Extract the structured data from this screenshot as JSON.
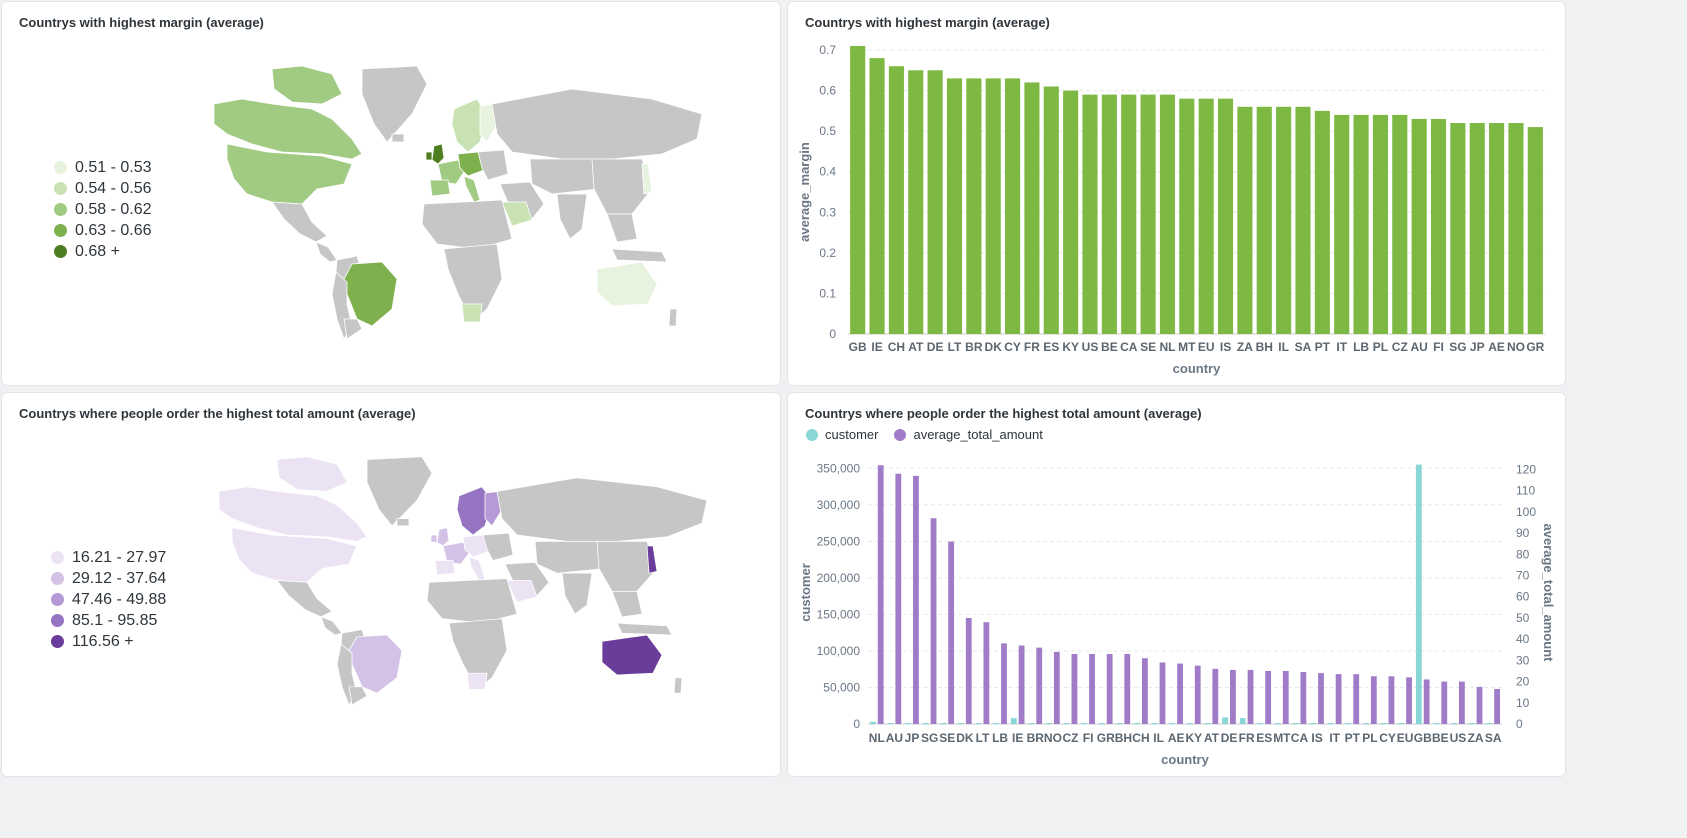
{
  "cards": {
    "map_margin": {
      "title": "Countrys with highest margin (average)"
    },
    "bar_margin": {
      "title": "Countrys with highest margin (average)"
    },
    "map_total": {
      "title": "Countrys where people order the highest total amount (average)"
    },
    "bar_total": {
      "title": "Countrys where people order the highest total amount (average)"
    }
  },
  "map_margin_legend": [
    {
      "label": "0.51 - 0.53",
      "color": "#e8f3df"
    },
    {
      "label": "0.54 - 0.56",
      "color": "#c8e2b3"
    },
    {
      "label": "0.58 - 0.62",
      "color": "#a1ca83"
    },
    {
      "label": "0.63 - 0.66",
      "color": "#7eb04e"
    },
    {
      "label": "0.68 +",
      "color": "#4f7d22"
    }
  ],
  "map_total_legend": [
    {
      "label": "16.21 - 27.97",
      "color": "#ebe3f4"
    },
    {
      "label": "29.12 - 37.64",
      "color": "#d3c2e6"
    },
    {
      "label": "47.46 - 49.88",
      "color": "#b59ad6"
    },
    {
      "label": "85.1 - 95.85",
      "color": "#9574c2"
    },
    {
      "label": "116.56 +",
      "color": "#6a3d9a"
    }
  ],
  "map_colors": {
    "land_no_data": "#c6c6c6",
    "border": "#ffffff"
  },
  "chart_data": [
    {
      "type": "bar",
      "title": "Countrys with highest margin (average)",
      "xlabel": "country",
      "ylabel": "average_margin",
      "ylim": [
        0,
        0.7
      ],
      "yticks": [
        "0",
        "0.1",
        "0.2",
        "0.3",
        "0.4",
        "0.5",
        "0.6",
        "0.7"
      ],
      "grid": true,
      "color": "#7cb842",
      "categories": [
        "GB",
        "IE",
        "CH",
        "AT",
        "DE",
        "LT",
        "BR",
        "DK",
        "CY",
        "FR",
        "ES",
        "KY",
        "US",
        "BE",
        "CA",
        "SE",
        "NL",
        "MT",
        "EU",
        "IS",
        "ZA",
        "BH",
        "IL",
        "SA",
        "PT",
        "IT",
        "LB",
        "PL",
        "CZ",
        "AU",
        "FI",
        "SG",
        "JP",
        "AE",
        "NO",
        "GR"
      ],
      "values": [
        0.71,
        0.68,
        0.66,
        0.65,
        0.65,
        0.63,
        0.63,
        0.63,
        0.63,
        0.62,
        0.61,
        0.6,
        0.59,
        0.59,
        0.59,
        0.59,
        0.59,
        0.58,
        0.58,
        0.58,
        0.56,
        0.56,
        0.56,
        0.56,
        0.55,
        0.54,
        0.54,
        0.54,
        0.54,
        0.53,
        0.53,
        0.52,
        0.52,
        0.52,
        0.52,
        0.51
      ]
    },
    {
      "type": "bar",
      "title": "Countrys where people order the highest total amount (average)",
      "xlabel": "country",
      "ylabel": "customer",
      "y2label": "average_total_amount",
      "ylim": [
        0,
        360000
      ],
      "y2lim": [
        0,
        124
      ],
      "yticks": [
        "0",
        "50,000",
        "100,000",
        "150,000",
        "200,000",
        "250,000",
        "300,000",
        "350,000"
      ],
      "y2ticks": [
        "0",
        "10",
        "20",
        "30",
        "40",
        "50",
        "60",
        "70",
        "80",
        "90",
        "100",
        "110",
        "120"
      ],
      "legend_position": "top-left",
      "grid": true,
      "categories": [
        "NL",
        "AU",
        "JP",
        "SG",
        "SE",
        "DK",
        "LT",
        "LB",
        "IE",
        "BR",
        "NO",
        "CZ",
        "FI",
        "GR",
        "BH",
        "CH",
        "IL",
        "AE",
        "KY",
        "AT",
        "DE",
        "FR",
        "ES",
        "MT",
        "CA",
        "IS",
        "IT",
        "PT",
        "PL",
        "CY",
        "EU",
        "GB",
        "BE",
        "US",
        "ZA",
        "SA"
      ],
      "series": [
        {
          "name": "customer",
          "axis": "left",
          "color": "#88d6d6",
          "values": [
            3000,
            500,
            500,
            1500,
            1500,
            500,
            1000,
            1000,
            8000,
            500,
            500,
            500,
            500,
            500,
            500,
            1500,
            500,
            500,
            500,
            500,
            9000,
            8000,
            500,
            500,
            1000,
            500,
            500,
            500,
            500,
            500,
            500,
            355000,
            1000,
            500,
            500,
            500
          ]
        },
        {
          "name": "average_total_amount",
          "axis": "right",
          "color": "#a07cc8",
          "values": [
            122,
            118,
            117,
            97,
            86,
            50,
            48,
            38,
            37,
            36,
            34,
            33,
            33,
            33,
            33,
            31,
            29,
            28.5,
            27.5,
            26,
            25.5,
            25.5,
            25,
            25,
            24.5,
            24,
            23.5,
            23.5,
            22.5,
            22.5,
            22,
            21,
            20,
            20,
            17.5,
            16.5
          ]
        }
      ]
    }
  ]
}
